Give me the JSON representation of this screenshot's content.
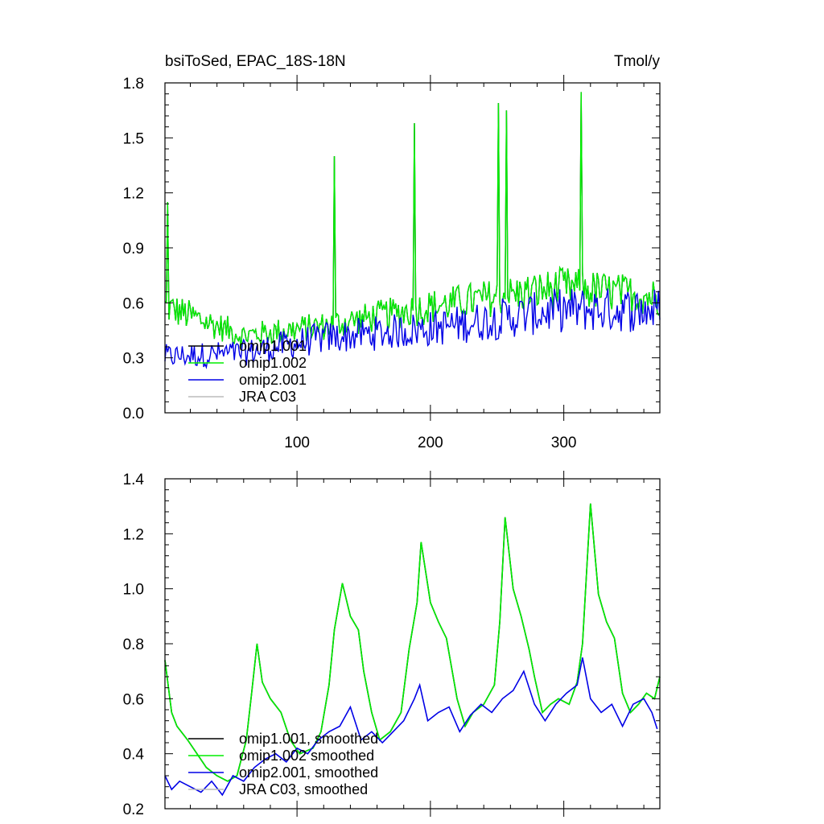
{
  "chart_data": [
    {
      "type": "line",
      "title_left": "bsiToSed, EPAC_18S-18N",
      "title_right": "Tmol/y",
      "xlim": [
        1,
        372
      ],
      "ylim": [
        0.0,
        1.8
      ],
      "xticks": [
        100,
        200,
        300
      ],
      "xtick_labels": [
        "100",
        "200",
        "300"
      ],
      "yticks": [
        0.0,
        0.3,
        0.6,
        0.9,
        1.2,
        1.5,
        1.8
      ],
      "ytick_labels": [
        "0.0",
        "0.3",
        "0.6",
        "0.9",
        "1.2",
        "1.5",
        "1.8"
      ],
      "legend_position": "lower-left",
      "series": [
        {
          "name": "omip1.001",
          "color": "#000000",
          "shape": "raw_greenish"
        },
        {
          "name": "omip1.002",
          "color": "#00ee00",
          "shape": "raw_greenish"
        },
        {
          "name": "omip2.001",
          "color": "#0000e6",
          "shape": "raw_blue"
        },
        {
          "name": "JRA C03",
          "color": "#bbbbbb",
          "shape": "none"
        }
      ],
      "key_points": {
        "green_peaks": [
          [
            3,
            1.15
          ],
          [
            128,
            1.4
          ],
          [
            188,
            1.58
          ],
          [
            251,
            1.69
          ],
          [
            257,
            1.65
          ],
          [
            313,
            1.75
          ]
        ],
        "green_baseline": [
          [
            1,
            0.55
          ],
          [
            60,
            0.4
          ],
          [
            120,
            0.45
          ],
          [
            200,
            0.55
          ],
          [
            300,
            0.65
          ],
          [
            372,
            0.6
          ]
        ],
        "blue_baseline": [
          [
            1,
            0.3
          ],
          [
            60,
            0.32
          ],
          [
            120,
            0.4
          ],
          [
            200,
            0.45
          ],
          [
            300,
            0.55
          ],
          [
            372,
            0.55
          ]
        ]
      }
    },
    {
      "type": "line",
      "xlim": [
        1,
        372
      ],
      "ylim": [
        0.2,
        1.4
      ],
      "xticks": [
        100,
        200,
        300
      ],
      "yticks": [
        0.2,
        0.4,
        0.6,
        0.8,
        1.0,
        1.2,
        1.4
      ],
      "ytick_labels": [
        "0.2",
        "0.4",
        "0.6",
        "0.8",
        "1.0",
        "1.2",
        "1.4"
      ],
      "legend_position": "lower-left",
      "series": [
        {
          "name": "omip1.001, smoothed",
          "color": "#000000",
          "x": [
            1,
            6,
            10,
            18,
            25,
            32,
            40,
            48,
            55,
            62,
            66,
            70,
            74,
            80,
            88,
            95,
            102,
            112,
            118,
            124,
            128,
            134,
            140,
            146,
            150,
            156,
            162,
            170,
            178,
            184,
            190,
            193,
            200,
            206,
            212,
            220,
            226,
            232,
            240,
            248,
            252,
            256,
            262,
            268,
            274,
            278,
            284,
            290,
            296,
            304,
            310,
            314,
            320,
            326,
            332,
            338,
            344,
            350,
            356,
            362,
            368,
            372
          ],
          "y": [
            0.74,
            0.55,
            0.5,
            0.45,
            0.4,
            0.35,
            0.32,
            0.3,
            0.32,
            0.45,
            0.62,
            0.8,
            0.66,
            0.6,
            0.55,
            0.45,
            0.4,
            0.42,
            0.48,
            0.65,
            0.85,
            1.02,
            0.9,
            0.85,
            0.7,
            0.55,
            0.45,
            0.48,
            0.55,
            0.78,
            0.95,
            1.17,
            0.95,
            0.88,
            0.82,
            0.6,
            0.5,
            0.55,
            0.58,
            0.65,
            0.88,
            1.26,
            1.0,
            0.9,
            0.78,
            0.68,
            0.55,
            0.58,
            0.6,
            0.58,
            0.66,
            0.8,
            1.31,
            0.98,
            0.88,
            0.82,
            0.62,
            0.55,
            0.58,
            0.62,
            0.6,
            0.68
          ]
        },
        {
          "name": "omip1.002 smoothed",
          "color": "#00ee00",
          "x": [
            1,
            6,
            10,
            18,
            25,
            32,
            40,
            48,
            55,
            62,
            66,
            70,
            74,
            80,
            88,
            95,
            102,
            112,
            118,
            124,
            128,
            134,
            140,
            146,
            150,
            156,
            162,
            170,
            178,
            184,
            190,
            193,
            200,
            206,
            212,
            220,
            226,
            232,
            240,
            248,
            252,
            256,
            262,
            268,
            274,
            278,
            284,
            290,
            296,
            304,
            310,
            314,
            320,
            326,
            332,
            338,
            344,
            350,
            356,
            362,
            368,
            372
          ],
          "y": [
            0.74,
            0.55,
            0.5,
            0.45,
            0.4,
            0.35,
            0.32,
            0.3,
            0.32,
            0.45,
            0.62,
            0.8,
            0.66,
            0.6,
            0.55,
            0.45,
            0.4,
            0.42,
            0.48,
            0.65,
            0.85,
            1.02,
            0.9,
            0.85,
            0.7,
            0.55,
            0.45,
            0.48,
            0.55,
            0.78,
            0.95,
            1.17,
            0.95,
            0.88,
            0.82,
            0.6,
            0.5,
            0.55,
            0.58,
            0.65,
            0.88,
            1.26,
            1.0,
            0.9,
            0.78,
            0.68,
            0.55,
            0.58,
            0.6,
            0.58,
            0.66,
            0.8,
            1.31,
            0.98,
            0.88,
            0.82,
            0.62,
            0.55,
            0.58,
            0.62,
            0.6,
            0.68
          ]
        },
        {
          "name": "omip2.001, smoothed",
          "color": "#0000e6",
          "x": [
            1,
            6,
            12,
            20,
            28,
            36,
            44,
            52,
            60,
            68,
            76,
            84,
            92,
            100,
            108,
            116,
            124,
            132,
            140,
            148,
            156,
            164,
            172,
            180,
            188,
            192,
            198,
            206,
            214,
            222,
            230,
            238,
            246,
            254,
            262,
            270,
            278,
            286,
            294,
            302,
            310,
            314,
            320,
            328,
            336,
            344,
            352,
            360,
            366,
            370
          ],
          "y": [
            0.32,
            0.27,
            0.3,
            0.28,
            0.26,
            0.3,
            0.25,
            0.32,
            0.3,
            0.35,
            0.38,
            0.4,
            0.37,
            0.42,
            0.4,
            0.45,
            0.48,
            0.5,
            0.57,
            0.45,
            0.48,
            0.44,
            0.48,
            0.52,
            0.6,
            0.65,
            0.52,
            0.55,
            0.57,
            0.48,
            0.54,
            0.58,
            0.55,
            0.6,
            0.63,
            0.7,
            0.58,
            0.52,
            0.58,
            0.62,
            0.65,
            0.75,
            0.6,
            0.55,
            0.58,
            0.5,
            0.58,
            0.6,
            0.55,
            0.49
          ]
        },
        {
          "name": "JRA C03, smoothed",
          "color": "#bbbbbb"
        }
      ]
    }
  ]
}
